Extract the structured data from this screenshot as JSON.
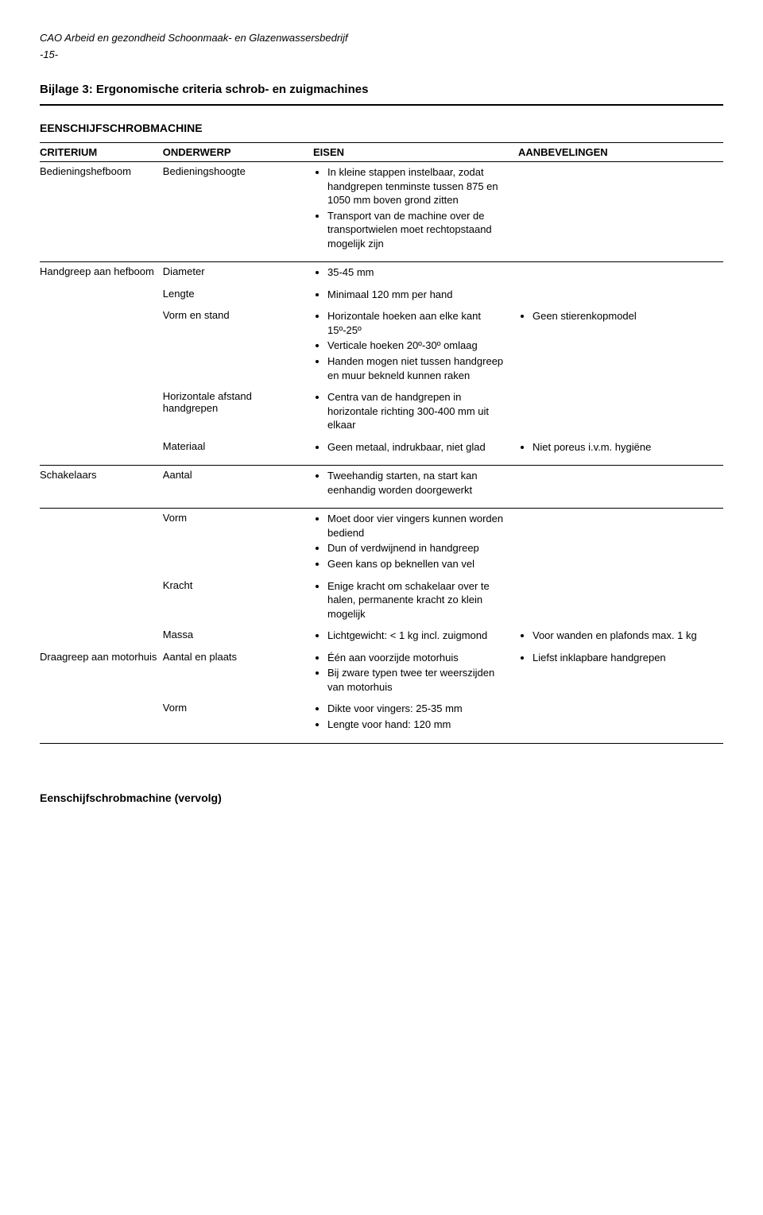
{
  "header": {
    "running_title": "CAO Arbeid en gezondheid Schoonmaak- en Glazenwassersbedrijf",
    "page_number": "-15-",
    "attachment_title": "Bijlage 3: Ergonomische criteria schrob- en zuigmachines",
    "machine_title": "EENSCHIJFSCHROBMACHINE"
  },
  "columns": {
    "criterium": "CRITERIUM",
    "onderwerp": "ONDERWERP",
    "eisen": "EISEN",
    "aanbevelingen": "AANBEVELINGEN"
  },
  "rows": {
    "r1": {
      "criterium": "Bedieningshefboom",
      "onderwerp": "Bedieningshoogte",
      "eisen": [
        "In kleine stappen instelbaar, zodat handgrepen tenminste tussen 875 en 1050 mm boven grond zitten",
        "Transport van de machine over de transportwielen moet rechtopstaand mogelijk zijn"
      ],
      "aanbevelingen": []
    },
    "r2": {
      "criterium": "Handgreep aan hefboom",
      "sub": {
        "diameter": {
          "onderwerp": "Diameter",
          "eisen": [
            "35-45 mm"
          ],
          "aanbevelingen": []
        },
        "lengte": {
          "onderwerp": "Lengte",
          "eisen": [
            "Minimaal 120 mm per hand"
          ],
          "aanbevelingen": []
        },
        "vorm_en_stand": {
          "onderwerp": "Vorm en stand",
          "eisen": [
            "Horizontale hoeken aan elke kant 15º-25º",
            "Verticale hoeken 20º-30º omlaag",
            "Handen mogen niet tussen handgreep en muur bekneld kunnen raken"
          ],
          "aanbevelingen": [
            "Geen stierenkopmodel"
          ]
        },
        "horizontale_afstand": {
          "onderwerp": "Horizontale afstand handgrepen",
          "eisen": [
            "Centra van de handgrepen in horizontale richting 300-400 mm uit elkaar"
          ],
          "aanbevelingen": []
        },
        "materiaal": {
          "onderwerp": "Materiaal",
          "eisen": [
            "Geen metaal, indrukbaar, niet glad"
          ],
          "aanbevelingen": [
            "Niet poreus i.v.m. hygiëne"
          ]
        }
      }
    },
    "r3": {
      "criterium": "Schakelaars",
      "sub": {
        "aantal": {
          "onderwerp": "Aantal",
          "eisen": [
            "Tweehandig starten, na start kan eenhandig worden doorgewerkt"
          ],
          "aanbevelingen": []
        },
        "vorm": {
          "onderwerp": "Vorm",
          "eisen": [
            "Moet door vier vingers kunnen worden bediend",
            "Dun of verdwijnend in handgreep",
            "Geen kans op beknellen van vel"
          ],
          "aanbevelingen": []
        },
        "kracht": {
          "onderwerp": "Kracht",
          "eisen": [
            "Enige kracht om schakelaar over te halen, permanente kracht zo klein mogelijk"
          ],
          "aanbevelingen": []
        },
        "massa": {
          "onderwerp": "Massa",
          "eisen": [
            "Lichtgewicht: < 1 kg incl. zuigmond"
          ],
          "aanbevelingen": [
            "Voor wanden en plafonds max. 1 kg"
          ]
        }
      }
    },
    "r4": {
      "criterium": "Draagreep aan motorhuis",
      "sub": {
        "aantal_en_plaats": {
          "onderwerp": "Aantal en plaats",
          "eisen": [
            "Één aan voorzijde motorhuis",
            "Bij zware typen twee ter weerszijden van motorhuis"
          ],
          "aanbevelingen": [
            "Liefst inklapbare handgrepen"
          ]
        },
        "vorm": {
          "onderwerp": "Vorm",
          "eisen": [
            "Dikte voor vingers: 25-35 mm",
            "Lengte voor hand: 120 mm"
          ],
          "aanbevelingen": []
        }
      }
    }
  },
  "footer": {
    "continued": "Eenschijfschrobmachine (vervolg)"
  }
}
